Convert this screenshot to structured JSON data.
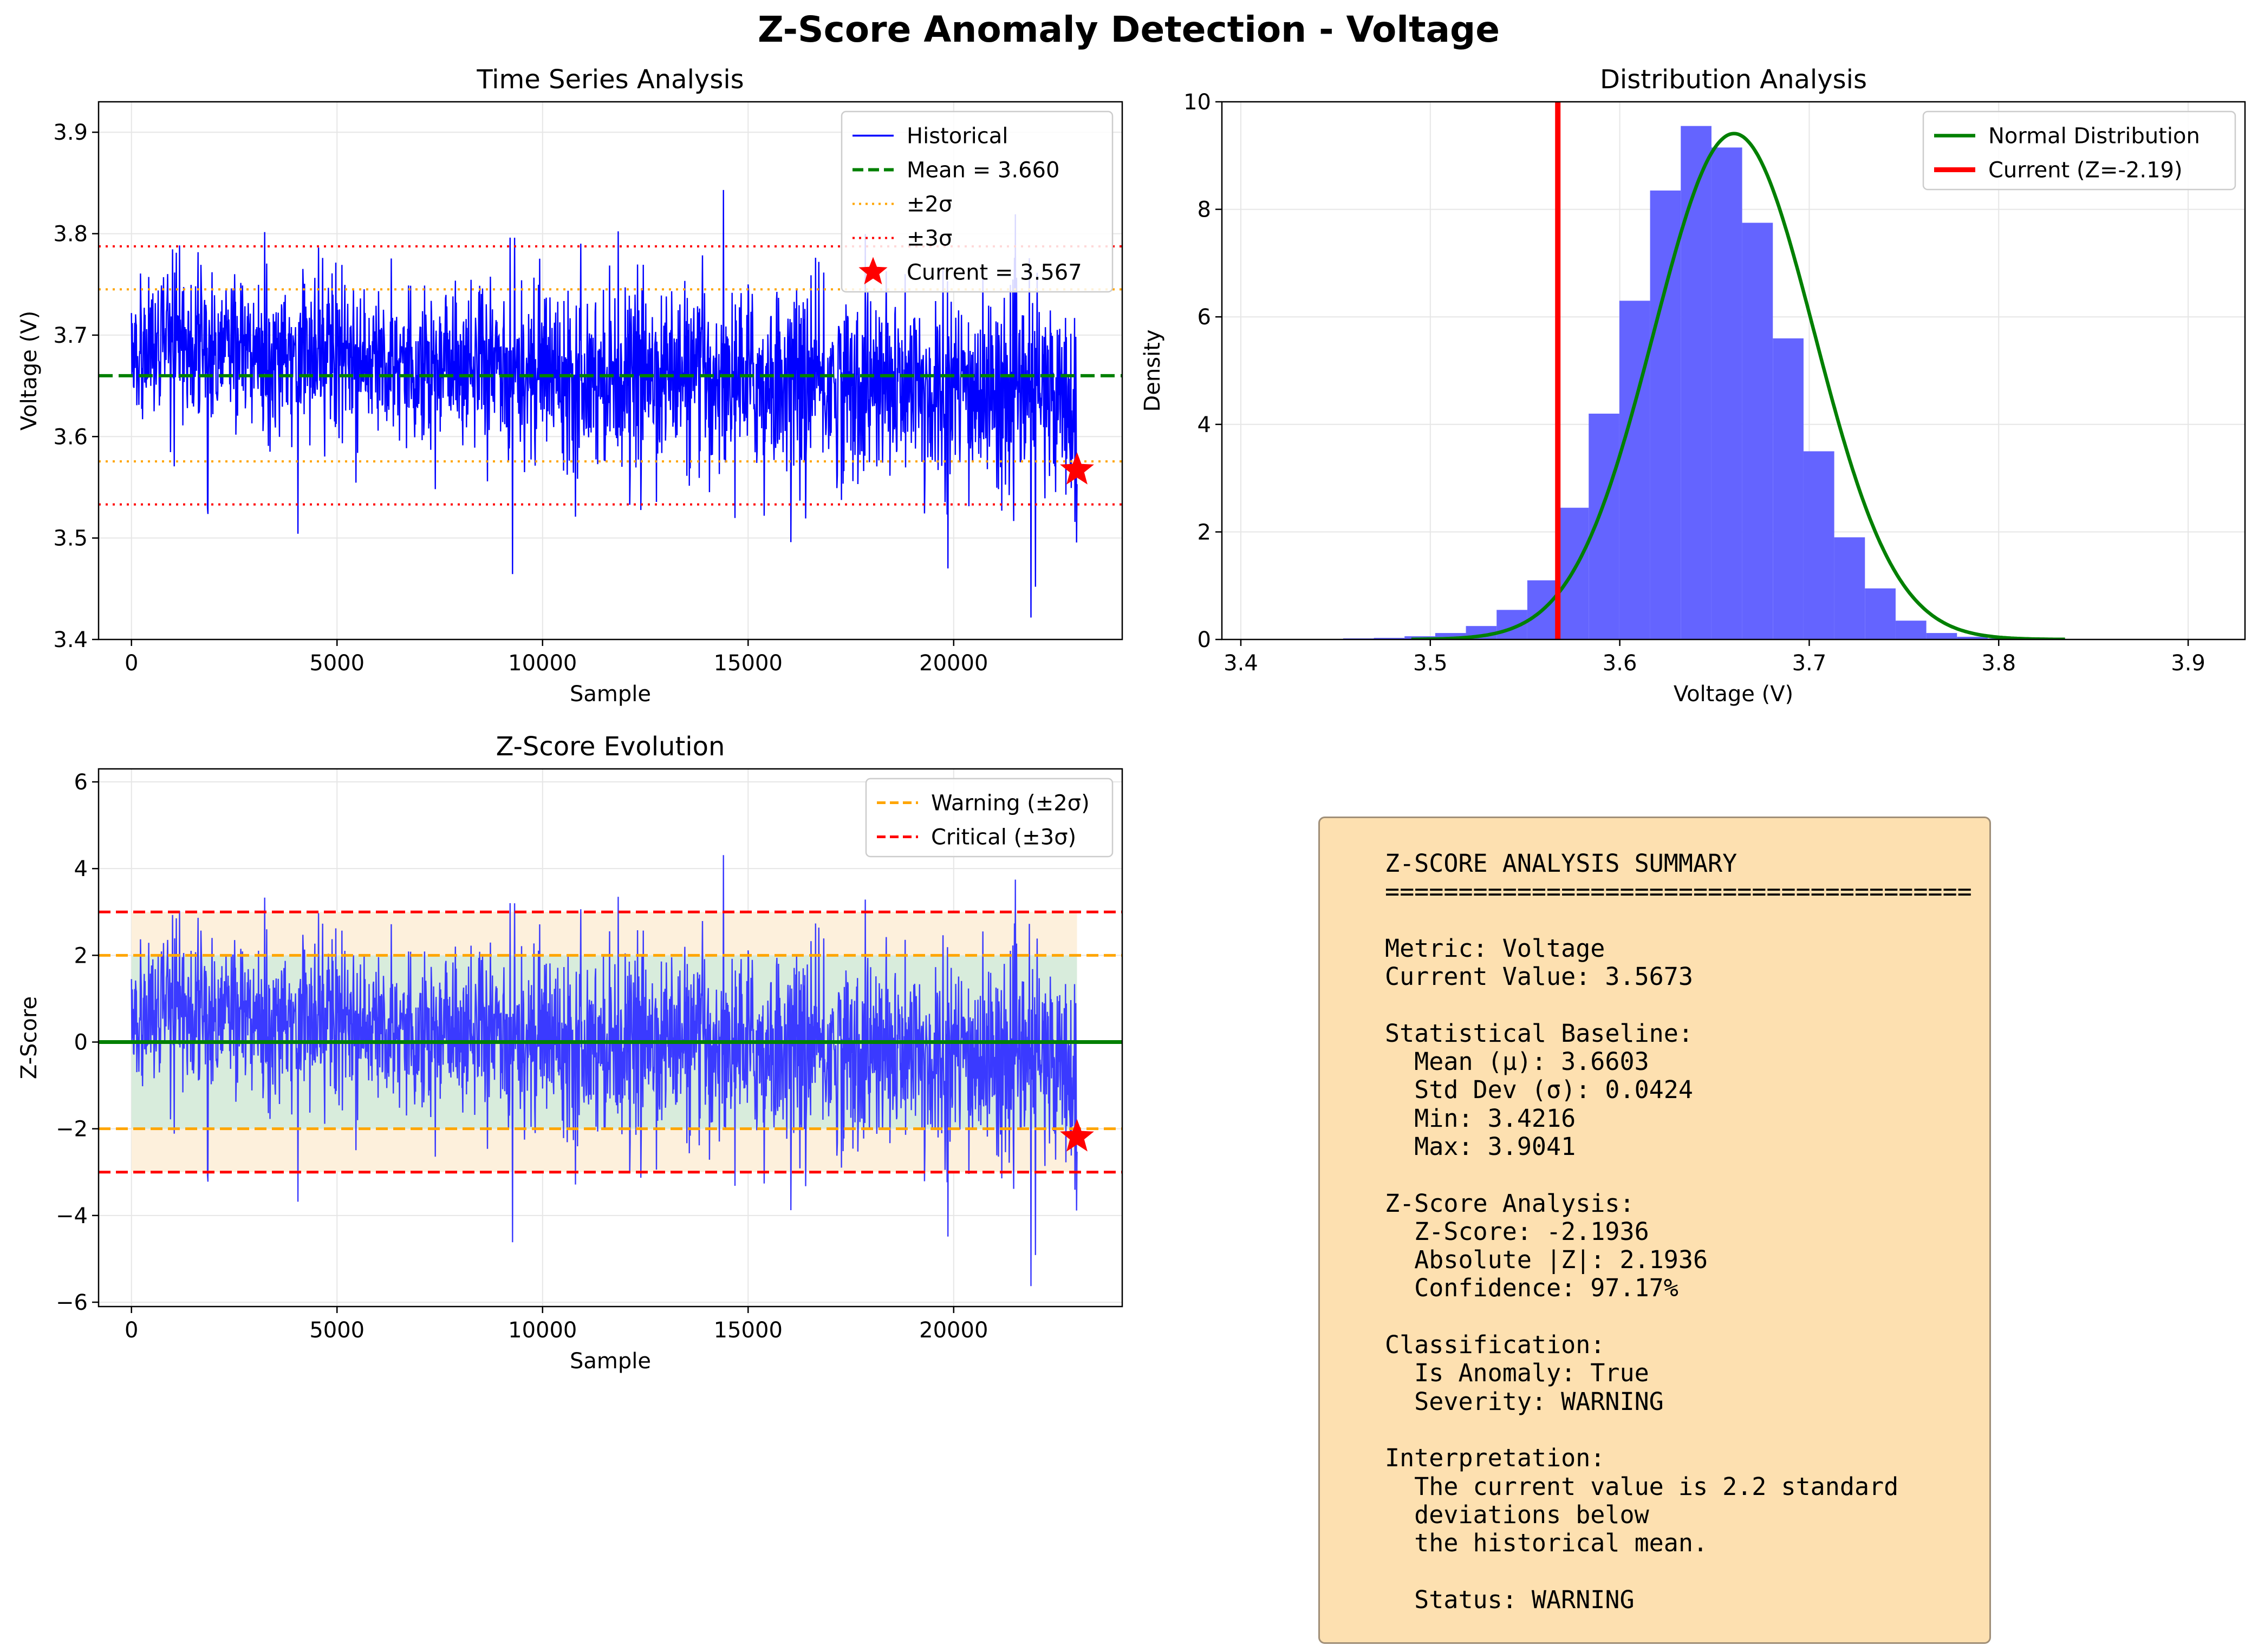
{
  "figure": {
    "title": "Z-Score Anomaly Detection - Voltage"
  },
  "chart_data": [
    {
      "id": "time_series",
      "type": "line",
      "title": "Time Series Analysis",
      "xlabel": "Sample",
      "ylabel": "Voltage (V)",
      "xlim": [
        -800,
        24100
      ],
      "ylim": [
        3.4,
        3.93
      ],
      "xticks": [
        0,
        5000,
        10000,
        15000,
        20000
      ],
      "yticks": [
        3.4,
        3.5,
        3.6,
        3.7,
        3.8,
        3.9
      ],
      "n_samples": 23000,
      "series": [
        {
          "name": "Historical",
          "color": "#0000ff",
          "style": "solid",
          "summary": {
            "start_mean": 3.69,
            "end_mean": 3.637,
            "std": 0.0424,
            "min": 3.4216,
            "max": 3.9041
          }
        }
      ],
      "hlines": [
        {
          "name": "Mean = 3.660",
          "y": 3.66,
          "color": "#008000",
          "style": "dashed"
        },
        {
          "name": "±2σ",
          "y": [
            3.5755,
            3.7451
          ],
          "color": "#ffa500",
          "style": "dotted"
        },
        {
          "name": "±3σ",
          "y": [
            3.5331,
            3.7875
          ],
          "color": "#ff0000",
          "style": "dotted"
        }
      ],
      "current_point": {
        "name": "Current = 3.567",
        "x": 23000,
        "y": 3.567,
        "color": "#ff0000",
        "marker": "star"
      },
      "legend": {
        "position": "upper right",
        "entries": [
          "Historical",
          "Mean = 3.660",
          "±2σ",
          "±3σ",
          "Current = 3.567"
        ]
      },
      "grid": true
    },
    {
      "id": "distribution",
      "type": "bar",
      "title": "Distribution Analysis",
      "xlabel": "Voltage (V)",
      "ylabel": "Density",
      "xlim": [
        3.39,
        3.93
      ],
      "ylim": [
        0,
        10
      ],
      "xticks": [
        3.4,
        3.5,
        3.6,
        3.7,
        3.8,
        3.9
      ],
      "yticks": [
        0,
        2,
        4,
        6,
        8,
        10
      ],
      "bin_edges": [
        3.4216,
        3.4378,
        3.454,
        3.4702,
        3.4864,
        3.5026,
        3.5188,
        3.535,
        3.5512,
        3.5674,
        3.5836,
        3.5998,
        3.616,
        3.6322,
        3.6484,
        3.6646,
        3.6808,
        3.697,
        3.7132,
        3.7294,
        3.7456,
        3.7618,
        3.778,
        3.7942,
        3.8104,
        3.8266,
        3.8428,
        3.859,
        3.8752,
        3.8914,
        3.9076
      ],
      "densities": [
        0.01,
        0.01,
        0.02,
        0.03,
        0.06,
        0.12,
        0.25,
        0.55,
        1.1,
        2.45,
        4.2,
        6.3,
        8.35,
        9.55,
        9.15,
        7.75,
        5.6,
        3.5,
        1.9,
        0.95,
        0.35,
        0.12,
        0.05,
        0.02,
        0.01,
        0.01,
        0.01,
        0.01,
        0.01,
        0.01
      ],
      "bar_color": "#6464ff",
      "series": [
        {
          "name": "Normal Distribution",
          "type": "curve",
          "mu": 3.6603,
          "sigma": 0.0424,
          "color": "#008000"
        },
        {
          "name": "Current (Z=-2.19)",
          "type": "vline",
          "x": 3.5673,
          "color": "#ff0000"
        }
      ],
      "legend": {
        "position": "upper right",
        "entries": [
          "Normal Distribution",
          "Current (Z=-2.19)"
        ]
      },
      "grid": true
    },
    {
      "id": "zscore",
      "type": "line",
      "title": "Z-Score Evolution",
      "xlabel": "Sample",
      "ylabel": "Z-Score",
      "xlim": [
        -800,
        24100
      ],
      "ylim": [
        -6.1,
        6.3
      ],
      "xticks": [
        0,
        5000,
        10000,
        15000,
        20000
      ],
      "yticks": [
        -6,
        -4,
        -2,
        0,
        2,
        4,
        6
      ],
      "series": [
        {
          "name": "Z-Score",
          "color": "#3a3aff",
          "style": "solid",
          "summary": {
            "start_mean": 0.7,
            "end_mean": -0.55,
            "min": -5.6,
            "max": 5.75
          }
        }
      ],
      "hlines": [
        {
          "name": "Warning (±2σ)",
          "y": [
            2,
            -2
          ],
          "color": "#ffa500",
          "style": "dashed"
        },
        {
          "name": "Critical (±3σ)",
          "y": [
            3,
            -3
          ],
          "color": "#ff0000",
          "style": "dashed"
        },
        {
          "name": "zero",
          "y": 0,
          "color": "#008000",
          "style": "solid"
        }
      ],
      "bands": [
        {
          "from": -2,
          "to": 2,
          "color": "#d8ecdc"
        },
        {
          "from": 2,
          "to": 3,
          "color": "#fdf0dc"
        },
        {
          "from": -3,
          "to": -2,
          "color": "#fdf0dc"
        }
      ],
      "current_point": {
        "x": 23000,
        "y": -2.19,
        "color": "#ff0000",
        "marker": "star"
      },
      "legend": {
        "position": "upper right",
        "entries": [
          "Warning (±2σ)",
          "Critical (±3σ)"
        ]
      },
      "grid": true
    }
  ],
  "summary": {
    "lines": [
      "Z-SCORE ANALYSIS SUMMARY",
      "========================================",
      "",
      "Metric: Voltage",
      "Current Value: 3.5673",
      "",
      "Statistical Baseline:",
      "  Mean (μ): 3.6603",
      "  Std Dev (σ): 0.0424",
      "  Min: 3.4216",
      "  Max: 3.9041",
      "",
      "Z-Score Analysis:",
      "  Z-Score: -2.1936",
      "  Absolute |Z|: 2.1936",
      "  Confidence: 97.17%",
      "",
      "Classification:",
      "  Is Anomaly: True",
      "  Severity: WARNING",
      "",
      "Interpretation:",
      "  The current value is 2.2 standard",
      "  deviations below",
      "  the historical mean.",
      "",
      "  Status: WARNING"
    ]
  }
}
